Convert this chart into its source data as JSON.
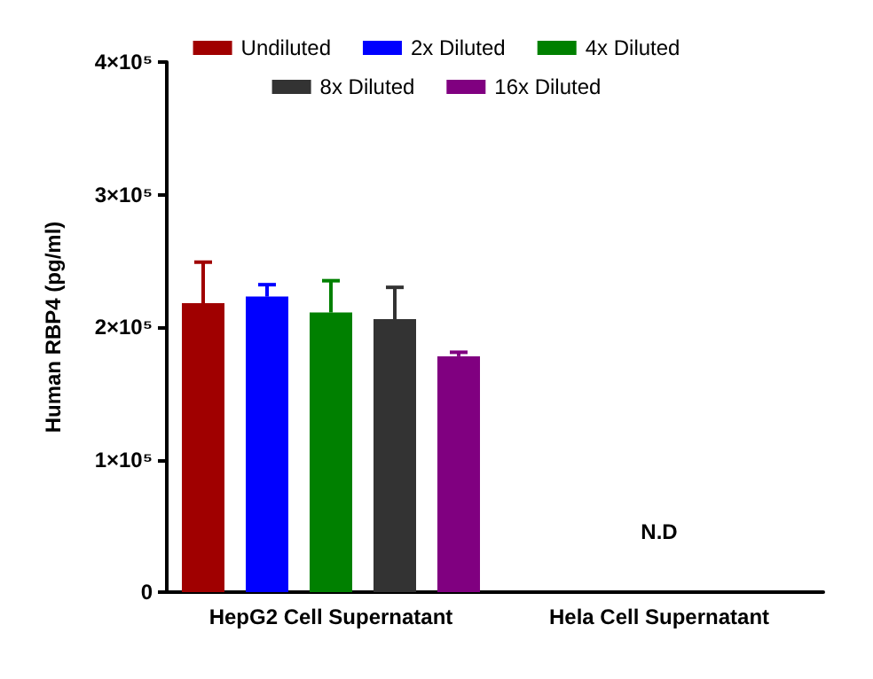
{
  "chart_data": {
    "type": "bar",
    "ylabel": "Human RBP4 (pg/ml)",
    "categories": [
      "HepG2 Cell Supernatant",
      "Hela Cell Supernatant"
    ],
    "series": [
      {
        "name": "Undiluted",
        "color": "#a00000",
        "values": [
          218000,
          null
        ],
        "errors": [
          [
            218000,
            249000
          ],
          null
        ]
      },
      {
        "name": "2x Diluted",
        "color": "#0000ff",
        "values": [
          223000,
          null
        ],
        "errors": [
          [
            223000,
            232000
          ],
          null
        ]
      },
      {
        "name": "4x Diluted",
        "color": "#008000",
        "values": [
          211000,
          null
        ],
        "errors": [
          [
            211000,
            235000
          ],
          null
        ]
      },
      {
        "name": "8x Diluted",
        "color": "#333333",
        "values": [
          206000,
          null
        ],
        "errors": [
          [
            206000,
            230000
          ],
          null
        ]
      },
      {
        "name": "16x Diluted",
        "color": "#800080",
        "values": [
          178000,
          null
        ],
        "errors": [
          [
            178000,
            181000
          ],
          null
        ]
      }
    ],
    "ylim": [
      0,
      400000
    ],
    "yticks": [
      0,
      {
        "value": 100000,
        "label": "1×10⁵"
      },
      {
        "value": 200000,
        "label": "2×10⁵"
      },
      {
        "value": 300000,
        "label": "3×10⁵"
      },
      {
        "value": 400000,
        "label": "4×10⁵"
      }
    ],
    "annotations": [
      "N.D"
    ],
    "grid": false,
    "legend": "top"
  }
}
